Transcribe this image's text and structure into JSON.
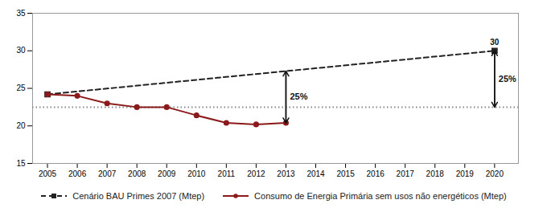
{
  "chart_data": {
    "type": "line",
    "series": [
      {
        "name": "Cenário BAU Primes 2007 (Mtep)",
        "color": "#222222",
        "line_style": "dashed",
        "marker": "square",
        "x": [
          2005,
          2020
        ],
        "values": [
          24.2,
          30.0
        ]
      },
      {
        "name": "Consumo de Energia Primária sem usos não energéticos (Mtep)",
        "color": "#8B1A1A",
        "line_style": "solid",
        "marker": "circle",
        "x": [
          2005,
          2006,
          2007,
          2008,
          2009,
          2010,
          2011,
          2012,
          2013
        ],
        "values": [
          24.2,
          24.0,
          23.0,
          22.5,
          22.5,
          21.4,
          20.4,
          20.2,
          20.4
        ]
      }
    ],
    "rules": [
      {
        "y": 22.5,
        "color": "#888888",
        "line_style": "dotted"
      }
    ],
    "annotations": [
      {
        "text": "25%",
        "x": 2013,
        "y": [
          27.293333333333333,
          20.4
        ],
        "color": "#111111"
      },
      {
        "text": "25%",
        "x": 2020,
        "y": [
          30.0,
          22.5
        ],
        "color": "#111111"
      },
      {
        "text": "30",
        "x": 2020,
        "y": 30.0,
        "color": "#111111"
      }
    ],
    "xlim": [
      2004.5,
      2020.8
    ],
    "ylim": [
      15,
      35
    ],
    "xticks": [
      2005,
      2006,
      2007,
      2008,
      2009,
      2010,
      2011,
      2012,
      2013,
      2014,
      2015,
      2016,
      2017,
      2018,
      2019,
      2020
    ],
    "yticks": [
      15,
      20,
      25,
      30,
      35
    ],
    "grid": false,
    "legend": "bottom"
  }
}
